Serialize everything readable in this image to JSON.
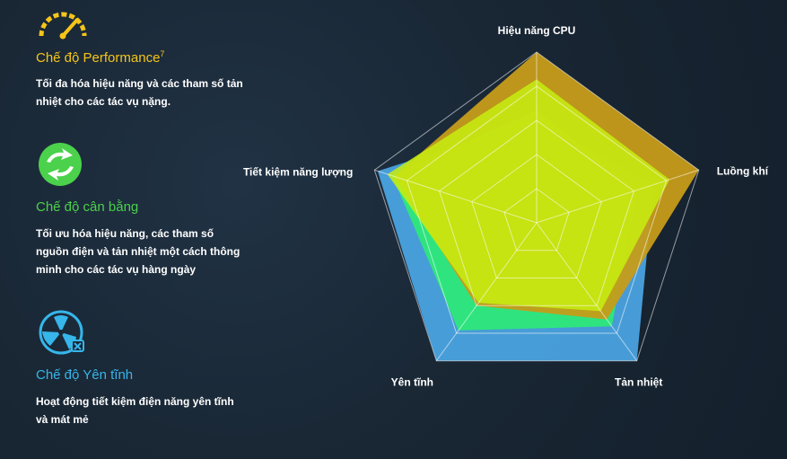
{
  "modes": [
    {
      "title": "Chế độ Performance",
      "superscript": "7",
      "description": "Tối đa hóa hiệu năng và các tham số tản nhiệt cho các tác vụ nặng.",
      "color": "#f5c518",
      "icon": "speedometer-icon"
    },
    {
      "title": "Chế độ cân bằng",
      "description": "Tối ưu hóa hiệu năng, các tham số nguồn điện và tản nhiệt một cách thông minh cho các tác vụ hàng ngày",
      "color": "#4bd14b",
      "icon": "balance-cycle-icon"
    },
    {
      "title": "Chế độ Yên tĩnh",
      "description": "Hoạt động tiết kiệm điện năng yên tĩnh và mát mẻ",
      "color": "#36b6ea",
      "icon": "fan-mute-icon"
    }
  ],
  "chart_data": {
    "type": "radar",
    "axes": [
      "Hiệu năng CPU",
      "Luồng khí",
      "Tản nhiệt",
      "Yên tĩnh",
      "Tiết kiệm năng lượng"
    ],
    "range": [
      0,
      100
    ],
    "grid_levels": 5,
    "series": [
      {
        "color": "#4aa3e0",
        "values": [
          60,
          72,
          100,
          100,
          98
        ]
      },
      {
        "color": "#2ee87a",
        "values": [
          66,
          62,
          75,
          78,
          89
        ]
      },
      {
        "color": "#c69c1a",
        "values": [
          100,
          100,
          70,
          60,
          88
        ]
      },
      {
        "color": "#c8ee10",
        "values": [
          84,
          82,
          64,
          58,
          92
        ]
      }
    ]
  }
}
